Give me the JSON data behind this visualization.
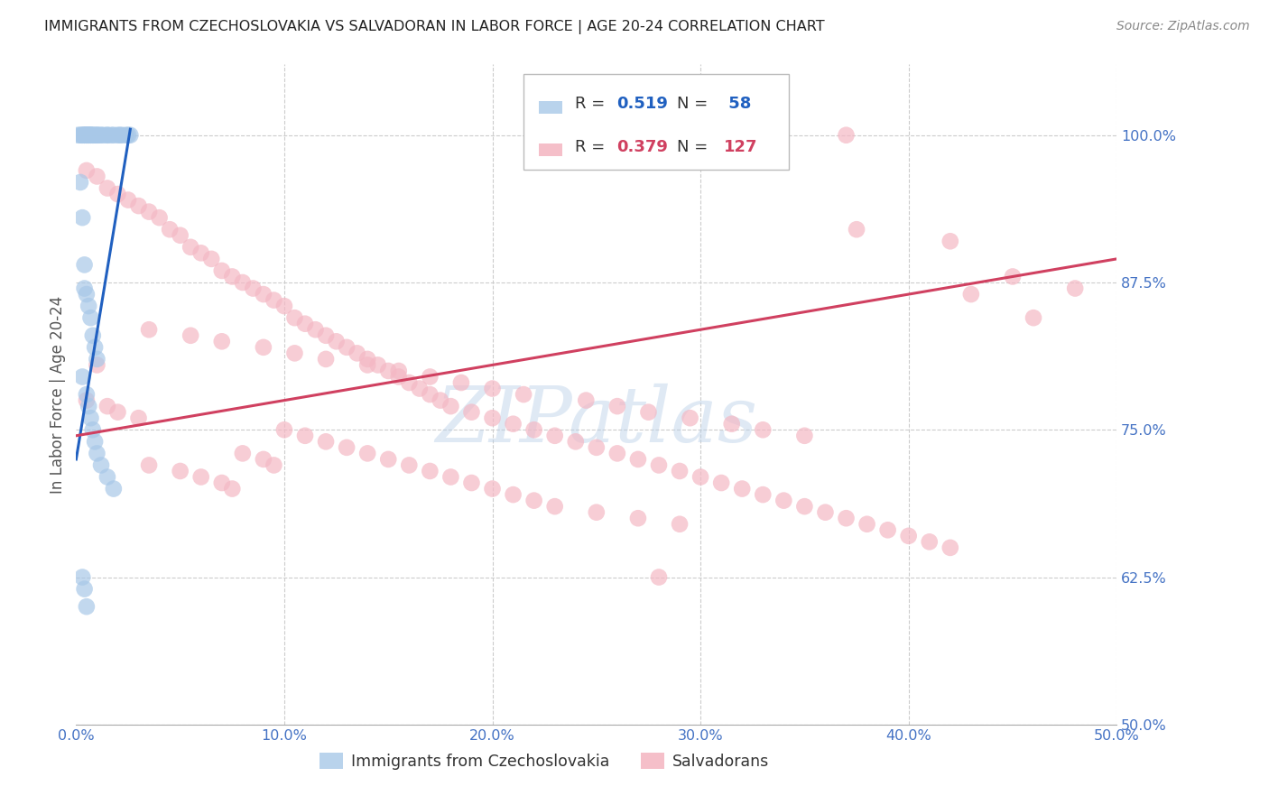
{
  "title": "IMMIGRANTS FROM CZECHOSLOVAKIA VS SALVADORAN IN LABOR FORCE | AGE 20-24 CORRELATION CHART",
  "source": "Source: ZipAtlas.com",
  "ylabel": "In Labor Force | Age 20-24",
  "xlim": [
    0.0,
    0.5
  ],
  "ylim": [
    0.5,
    1.06
  ],
  "ytick_labels": [
    "50.0%",
    "62.5%",
    "75.0%",
    "87.5%",
    "100.0%"
  ],
  "ytick_values": [
    0.5,
    0.625,
    0.75,
    0.875,
    1.0
  ],
  "xtick_labels": [
    "0.0%",
    "10.0%",
    "20.0%",
    "30.0%",
    "40.0%",
    "50.0%"
  ],
  "xtick_values": [
    0.0,
    0.1,
    0.2,
    0.3,
    0.4,
    0.5
  ],
  "blue_color": "#a8c8e8",
  "pink_color": "#f4b8c4",
  "trendline_blue": "#2060c0",
  "trendline_pink": "#d04060",
  "watermark": "ZIPatlas",
  "title_color": "#222222",
  "axis_label_color": "#555555",
  "tick_label_color": "#4472c4",
  "grid_color": "#cccccc",
  "blue_scatter_x": [
    0.001,
    0.002,
    0.003,
    0.003,
    0.004,
    0.004,
    0.004,
    0.005,
    0.005,
    0.005,
    0.006,
    0.006,
    0.006,
    0.007,
    0.007,
    0.007,
    0.008,
    0.008,
    0.009,
    0.01,
    0.01,
    0.011,
    0.012,
    0.013,
    0.015,
    0.015,
    0.017,
    0.018,
    0.02,
    0.021,
    0.022,
    0.024,
    0.025,
    0.026,
    0.002,
    0.003,
    0.004,
    0.004,
    0.005,
    0.006,
    0.007,
    0.008,
    0.009,
    0.01,
    0.003,
    0.005,
    0.006,
    0.007,
    0.008,
    0.009,
    0.01,
    0.012,
    0.015,
    0.018,
    0.003,
    0.004,
    0.005
  ],
  "blue_scatter_y": [
    1.0,
    1.0,
    1.0,
    1.0,
    1.0,
    1.0,
    1.0,
    1.0,
    1.0,
    1.0,
    1.0,
    1.0,
    1.0,
    1.0,
    1.0,
    1.0,
    1.0,
    1.0,
    1.0,
    1.0,
    1.0,
    1.0,
    1.0,
    1.0,
    1.0,
    1.0,
    1.0,
    1.0,
    1.0,
    1.0,
    1.0,
    1.0,
    1.0,
    1.0,
    0.96,
    0.93,
    0.89,
    0.87,
    0.865,
    0.855,
    0.845,
    0.83,
    0.82,
    0.81,
    0.795,
    0.78,
    0.77,
    0.76,
    0.75,
    0.74,
    0.73,
    0.72,
    0.71,
    0.7,
    0.625,
    0.615,
    0.6
  ],
  "pink_scatter_x": [
    0.005,
    0.01,
    0.015,
    0.02,
    0.025,
    0.03,
    0.035,
    0.04,
    0.045,
    0.05,
    0.055,
    0.06,
    0.065,
    0.07,
    0.075,
    0.08,
    0.085,
    0.09,
    0.095,
    0.1,
    0.105,
    0.11,
    0.115,
    0.12,
    0.125,
    0.13,
    0.135,
    0.14,
    0.145,
    0.15,
    0.155,
    0.16,
    0.165,
    0.17,
    0.175,
    0.18,
    0.19,
    0.2,
    0.21,
    0.22,
    0.23,
    0.24,
    0.25,
    0.26,
    0.27,
    0.28,
    0.29,
    0.3,
    0.31,
    0.32,
    0.33,
    0.34,
    0.35,
    0.36,
    0.37,
    0.38,
    0.39,
    0.4,
    0.41,
    0.42,
    0.005,
    0.01,
    0.015,
    0.02,
    0.03,
    0.035,
    0.05,
    0.06,
    0.07,
    0.075,
    0.08,
    0.09,
    0.095,
    0.1,
    0.11,
    0.12,
    0.13,
    0.14,
    0.15,
    0.16,
    0.17,
    0.18,
    0.19,
    0.2,
    0.21,
    0.22,
    0.23,
    0.25,
    0.27,
    0.29,
    0.035,
    0.055,
    0.07,
    0.09,
    0.105,
    0.12,
    0.14,
    0.155,
    0.17,
    0.185,
    0.2,
    0.215,
    0.245,
    0.26,
    0.275,
    0.295,
    0.315,
    0.33,
    0.35,
    0.28,
    0.37,
    0.43,
    0.46,
    0.375,
    0.42,
    0.45,
    0.48
  ],
  "pink_scatter_y": [
    0.97,
    0.965,
    0.955,
    0.95,
    0.945,
    0.94,
    0.935,
    0.93,
    0.92,
    0.915,
    0.905,
    0.9,
    0.895,
    0.885,
    0.88,
    0.875,
    0.87,
    0.865,
    0.86,
    0.855,
    0.845,
    0.84,
    0.835,
    0.83,
    0.825,
    0.82,
    0.815,
    0.81,
    0.805,
    0.8,
    0.795,
    0.79,
    0.785,
    0.78,
    0.775,
    0.77,
    0.765,
    0.76,
    0.755,
    0.75,
    0.745,
    0.74,
    0.735,
    0.73,
    0.725,
    0.72,
    0.715,
    0.71,
    0.705,
    0.7,
    0.695,
    0.69,
    0.685,
    0.68,
    0.675,
    0.67,
    0.665,
    0.66,
    0.655,
    0.65,
    0.775,
    0.805,
    0.77,
    0.765,
    0.76,
    0.72,
    0.715,
    0.71,
    0.705,
    0.7,
    0.73,
    0.725,
    0.72,
    0.75,
    0.745,
    0.74,
    0.735,
    0.73,
    0.725,
    0.72,
    0.715,
    0.71,
    0.705,
    0.7,
    0.695,
    0.69,
    0.685,
    0.68,
    0.675,
    0.67,
    0.835,
    0.83,
    0.825,
    0.82,
    0.815,
    0.81,
    0.805,
    0.8,
    0.795,
    0.79,
    0.785,
    0.78,
    0.775,
    0.77,
    0.765,
    0.76,
    0.755,
    0.75,
    0.745,
    0.625,
    1.0,
    0.865,
    0.845,
    0.92,
    0.91,
    0.88,
    0.87
  ],
  "blue_trendline_x": [
    0.0,
    0.026
  ],
  "blue_trendline_y": [
    0.725,
    1.005
  ],
  "pink_trendline_x": [
    0.0,
    0.5
  ],
  "pink_trendline_y": [
    0.745,
    0.895
  ]
}
